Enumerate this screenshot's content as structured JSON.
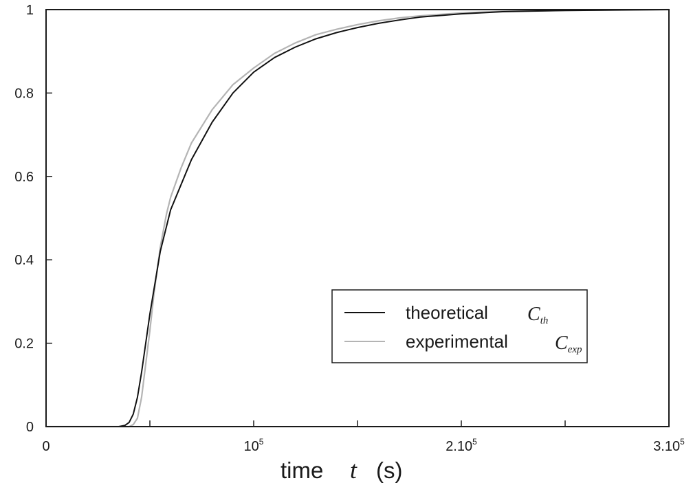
{
  "chart_data": {
    "type": "line",
    "xlabel": {
      "text": "time",
      "variable": "t",
      "unit": "(s)"
    },
    "xlim": [
      0,
      300000
    ],
    "ylim": [
      0,
      1
    ],
    "x_ticks": [
      {
        "value": 0,
        "base": "0",
        "exp": ""
      },
      {
        "value": 100000,
        "base": "10",
        "exp": "5"
      },
      {
        "value": 200000,
        "base": "2.10",
        "exp": "5"
      },
      {
        "value": 300000,
        "base": "3.10",
        "exp": "5"
      }
    ],
    "x_minor_ticks": [
      50000,
      150000,
      250000
    ],
    "y_ticks": [
      {
        "value": 0,
        "label": "0"
      },
      {
        "value": 0.2,
        "label": "0.2"
      },
      {
        "value": 0.4,
        "label": "0.4"
      },
      {
        "value": 0.6,
        "label": "0.6"
      },
      {
        "value": 0.8,
        "label": "0.8"
      },
      {
        "value": 1,
        "label": "1"
      }
    ],
    "grid": false,
    "legend_position": "lower-right",
    "series": [
      {
        "name": "theoretical",
        "symbol": "C",
        "subscript": "th",
        "color": "#111111",
        "x": [
          0,
          35000,
          38000,
          40000,
          42000,
          44000,
          46000,
          48000,
          50000,
          55000,
          60000,
          70000,
          80000,
          90000,
          100000,
          110000,
          120000,
          130000,
          140000,
          150000,
          160000,
          170000,
          180000,
          200000,
          220000,
          250000,
          300000
        ],
        "y": [
          0,
          0,
          0.003,
          0.01,
          0.03,
          0.07,
          0.13,
          0.2,
          0.27,
          0.42,
          0.52,
          0.64,
          0.73,
          0.8,
          0.85,
          0.885,
          0.91,
          0.93,
          0.945,
          0.957,
          0.967,
          0.975,
          0.982,
          0.99,
          0.995,
          0.998,
          1.0
        ]
      },
      {
        "name": "experimental",
        "symbol": "C",
        "subscript": "exp",
        "color": "#b4b4b4",
        "x": [
          0,
          40000,
          42000,
          44000,
          46000,
          48000,
          50000,
          52000,
          55000,
          58000,
          60000,
          65000,
          70000,
          80000,
          90000,
          100000,
          110000,
          120000,
          130000,
          140000,
          150000,
          160000,
          170000,
          180000,
          200000,
          220000,
          250000,
          300000
        ],
        "y": [
          0,
          0,
          0.005,
          0.02,
          0.07,
          0.15,
          0.23,
          0.32,
          0.43,
          0.51,
          0.55,
          0.62,
          0.68,
          0.76,
          0.82,
          0.86,
          0.895,
          0.92,
          0.94,
          0.953,
          0.964,
          0.973,
          0.98,
          0.985,
          0.992,
          0.996,
          0.998,
          1.0
        ]
      }
    ]
  }
}
